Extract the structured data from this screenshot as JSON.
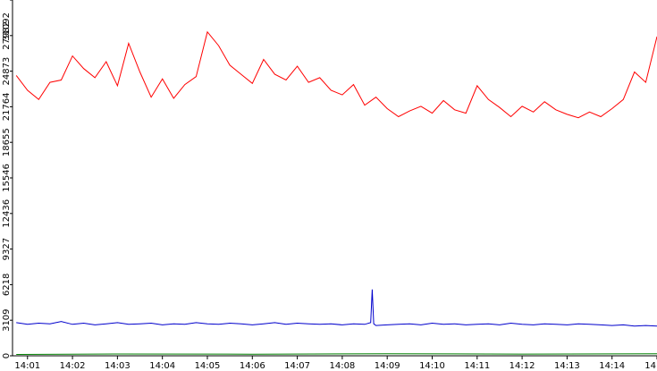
{
  "chart_data": {
    "type": "line",
    "ylim": [
      0,
      31092
    ],
    "y_ticks": [
      "0",
      "3109",
      "6218",
      "9327",
      "12436",
      "15546",
      "18655",
      "21764",
      "24873",
      "27982",
      "31092"
    ],
    "x_ticks": [
      "14:01",
      "14:02",
      "14:03",
      "14:04",
      "14:05",
      "14:06",
      "14:07",
      "14:08",
      "14:09",
      "14:10",
      "14:11",
      "14:12",
      "14:13",
      "14:14",
      "14"
    ],
    "x_range": [
      "14:00:40",
      "14:15:00"
    ],
    "grid": false,
    "legend": "none",
    "series": [
      {
        "color": "#ff0000",
        "x": [
          "14:00:45",
          "14:01:00",
          "14:01:15",
          "14:01:30",
          "14:01:45",
          "14:02:00",
          "14:02:15",
          "14:02:30",
          "14:02:45",
          "14:03:00",
          "14:03:15",
          "14:03:30",
          "14:03:45",
          "14:04:00",
          "14:04:15",
          "14:04:30",
          "14:04:45",
          "14:05:00",
          "14:05:15",
          "14:05:30",
          "14:05:45",
          "14:06:00",
          "14:06:15",
          "14:06:30",
          "14:06:45",
          "14:07:00",
          "14:07:15",
          "14:07:30",
          "14:07:45",
          "14:08:00",
          "14:08:15",
          "14:08:30",
          "14:08:45",
          "14:09:00",
          "14:09:15",
          "14:09:30",
          "14:09:45",
          "14:10:00",
          "14:10:15",
          "14:10:30",
          "14:10:45",
          "14:11:00",
          "14:11:15",
          "14:11:30",
          "14:11:45",
          "14:12:00",
          "14:12:15",
          "14:12:30",
          "14:12:45",
          "14:13:00",
          "14:13:15",
          "14:13:30",
          "14:13:45",
          "14:14:00",
          "14:14:15",
          "14:14:30",
          "14:14:45",
          "14:15:00"
        ],
        "values": [
          24500,
          23200,
          22400,
          23900,
          24100,
          26200,
          25100,
          24300,
          25700,
          23600,
          27300,
          24800,
          22600,
          24200,
          22500,
          23700,
          24400,
          28300,
          27100,
          25400,
          24600,
          23800,
          25900,
          24600,
          24100,
          25300,
          23900,
          24300,
          23200,
          22800,
          23700,
          21900,
          22600,
          21600,
          20900,
          21400,
          21800,
          21200,
          22300,
          21500,
          21200,
          23600,
          22400,
          21700,
          20900,
          21800,
          21300,
          22200,
          21500,
          21100,
          20800,
          21300,
          20900,
          21600,
          22400,
          24800,
          23900,
          27900
        ]
      },
      {
        "color": "#0000cc",
        "x": [
          "14:00:45",
          "14:01:00",
          "14:01:15",
          "14:01:30",
          "14:01:45",
          "14:02:00",
          "14:02:15",
          "14:02:30",
          "14:02:45",
          "14:03:00",
          "14:03:15",
          "14:03:30",
          "14:03:45",
          "14:04:00",
          "14:04:15",
          "14:04:30",
          "14:04:45",
          "14:05:00",
          "14:05:15",
          "14:05:30",
          "14:05:45",
          "14:06:00",
          "14:06:15",
          "14:06:30",
          "14:06:45",
          "14:07:00",
          "14:07:15",
          "14:07:30",
          "14:07:45",
          "14:08:00",
          "14:08:15",
          "14:08:30",
          "14:08:38",
          "14:08:40",
          "14:08:42",
          "14:08:45",
          "14:09:00",
          "14:09:15",
          "14:09:30",
          "14:09:45",
          "14:10:00",
          "14:10:15",
          "14:10:30",
          "14:10:45",
          "14:11:00",
          "14:11:15",
          "14:11:30",
          "14:11:45",
          "14:12:00",
          "14:12:15",
          "14:12:30",
          "14:12:45",
          "14:13:00",
          "14:13:15",
          "14:13:30",
          "14:13:45",
          "14:14:00",
          "14:14:15",
          "14:14:30",
          "14:14:45",
          "14:15:00"
        ],
        "values": [
          2900,
          2750,
          2850,
          2800,
          3000,
          2750,
          2850,
          2700,
          2800,
          2900,
          2750,
          2800,
          2850,
          2700,
          2800,
          2750,
          2900,
          2800,
          2750,
          2850,
          2800,
          2700,
          2800,
          2900,
          2750,
          2850,
          2800,
          2750,
          2800,
          2700,
          2800,
          2750,
          2900,
          5800,
          2800,
          2650,
          2700,
          2750,
          2800,
          2700,
          2850,
          2750,
          2800,
          2700,
          2750,
          2800,
          2700,
          2850,
          2750,
          2700,
          2800,
          2750,
          2700,
          2800,
          2750,
          2700,
          2650,
          2700,
          2600,
          2650,
          2600
        ]
      },
      {
        "color": "#008000",
        "x": [
          "14:00:45",
          "14:03:00",
          "14:06:00",
          "14:09:00",
          "14:12:00",
          "14:15:00"
        ],
        "values": [
          120,
          160,
          140,
          180,
          150,
          170
        ]
      }
    ]
  }
}
